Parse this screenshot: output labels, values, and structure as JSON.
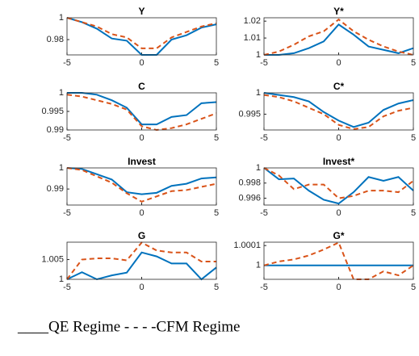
{
  "chart_data": [
    {
      "type": "line",
      "title": "Y",
      "x": [
        -5,
        -4,
        -3,
        -2,
        -1,
        0,
        1,
        2,
        3,
        4,
        5
      ],
      "xlim": [
        -5,
        5
      ],
      "xticks": [
        -5,
        0,
        5
      ],
      "ylim": [
        0.966,
        1.0
      ],
      "yticks": [
        0.98,
        1
      ],
      "series": [
        {
          "color": "#0072bd",
          "line_style": "solid",
          "values": [
            1.0,
            0.996,
            0.99,
            0.981,
            0.979,
            0.966,
            0.966,
            0.98,
            0.984,
            0.991,
            0.994
          ]
        },
        {
          "color": "#d95319",
          "line_style": "dashed",
          "values": [
            1.0,
            0.996,
            0.992,
            0.985,
            0.982,
            0.972,
            0.972,
            0.982,
            0.987,
            0.992,
            0.995
          ]
        }
      ]
    },
    {
      "type": "line",
      "title": "Y*",
      "x": [
        -5,
        -4,
        -3,
        -2,
        -1,
        0,
        1,
        2,
        3,
        4,
        5
      ],
      "xlim": [
        -5,
        5
      ],
      "xticks": [
        -5,
        0,
        5
      ],
      "ylim": [
        1.0,
        1.022
      ],
      "yticks": [
        1,
        1.01,
        1.02
      ],
      "series": [
        {
          "color": "#0072bd",
          "line_style": "solid",
          "values": [
            1.0,
            1.0,
            1.001,
            1.004,
            1.008,
            1.018,
            1.012,
            1.005,
            1.003,
            1.001,
            1.004
          ]
        },
        {
          "color": "#d95319",
          "line_style": "dashed",
          "values": [
            1.0,
            1.002,
            1.006,
            1.011,
            1.014,
            1.021,
            1.014,
            1.009,
            1.005,
            1.002,
            1.0
          ]
        }
      ]
    },
    {
      "type": "line",
      "title": "C",
      "x": [
        -5,
        -4,
        -3,
        -2,
        -1,
        0,
        1,
        2,
        3,
        4,
        5
      ],
      "xlim": [
        -5,
        5
      ],
      "xticks": [
        -5,
        0,
        5
      ],
      "ylim": [
        0.99,
        1.0
      ],
      "yticks": [
        0.99,
        0.995,
        1
      ],
      "series": [
        {
          "color": "#0072bd",
          "line_style": "solid",
          "values": [
            1.0,
            1.0,
            0.9995,
            0.998,
            0.996,
            0.9915,
            0.9915,
            0.9935,
            0.994,
            0.9972,
            0.9975
          ]
        },
        {
          "color": "#d95319",
          "line_style": "dashed",
          "values": [
            0.9995,
            0.999,
            0.998,
            0.997,
            0.9955,
            0.991,
            0.99,
            0.9905,
            0.9915,
            0.993,
            0.9945
          ]
        }
      ]
    },
    {
      "type": "line",
      "title": "C*",
      "x": [
        -5,
        -4,
        -3,
        -2,
        -1,
        0,
        1,
        2,
        3,
        4,
        5
      ],
      "xlim": [
        -5,
        5
      ],
      "xticks": [
        -5,
        0,
        5
      ],
      "ylim": [
        0.9913,
        1.0
      ],
      "yticks": [
        0.995,
        1
      ],
      "series": [
        {
          "color": "#0072bd",
          "line_style": "solid",
          "values": [
            1.0,
            0.9995,
            0.999,
            0.998,
            0.9955,
            0.9935,
            0.992,
            0.993,
            0.996,
            0.9975,
            0.9983
          ]
        },
        {
          "color": "#d95319",
          "line_style": "dashed",
          "values": [
            0.9995,
            0.999,
            0.998,
            0.9965,
            0.995,
            0.9925,
            0.9915,
            0.992,
            0.9945,
            0.9958,
            0.9965
          ]
        }
      ]
    },
    {
      "type": "line",
      "title": "Invest",
      "x": [
        -5,
        -4,
        -3,
        -2,
        -1,
        0,
        1,
        2,
        3,
        4,
        5
      ],
      "xlim": [
        -5,
        5
      ],
      "xticks": [
        -5,
        0,
        5
      ],
      "ylim": [
        0.9824,
        1.0
      ],
      "yticks": [
        0.99,
        1
      ],
      "series": [
        {
          "color": "#0072bd",
          "line_style": "solid",
          "values": [
            1.0,
            0.9995,
            0.997,
            0.9945,
            0.9885,
            0.9875,
            0.9882,
            0.9915,
            0.9925,
            0.995,
            0.9955
          ]
        },
        {
          "color": "#d95319",
          "line_style": "dashed",
          "values": [
            1.0,
            0.999,
            0.996,
            0.993,
            0.988,
            0.984,
            0.9865,
            0.989,
            0.9895,
            0.991,
            0.9925
          ]
        }
      ]
    },
    {
      "type": "line",
      "title": "Invest*",
      "x": [
        -5,
        -4,
        -3,
        -2,
        -1,
        0,
        1,
        2,
        3,
        4,
        5
      ],
      "xlim": [
        -5,
        5
      ],
      "xticks": [
        -5,
        0,
        5
      ],
      "ylim": [
        0.9951,
        1.0
      ],
      "yticks": [
        0.996,
        0.998,
        1
      ],
      "series": [
        {
          "color": "#0072bd",
          "line_style": "solid",
          "values": [
            1.0,
            0.9985,
            0.9986,
            0.997,
            0.9958,
            0.9953,
            0.9968,
            0.9988,
            0.9983,
            0.9988,
            0.997
          ]
        },
        {
          "color": "#d95319",
          "line_style": "dashed",
          "values": [
            1.0,
            0.999,
            0.9972,
            0.9978,
            0.9978,
            0.996,
            0.9963,
            0.997,
            0.997,
            0.9968,
            0.9983
          ]
        }
      ]
    },
    {
      "type": "line",
      "title": "G",
      "x": [
        -5,
        -4,
        -3,
        -2,
        -1,
        0,
        1,
        2,
        3,
        4,
        5
      ],
      "xlim": [
        -5,
        5
      ],
      "xticks": [
        -5,
        0,
        5
      ],
      "ylim": [
        1.0,
        1.0094
      ],
      "yticks": [
        1,
        1.005
      ],
      "series": [
        {
          "color": "#0072bd",
          "line_style": "solid",
          "values": [
            1.0,
            1.0018,
            1.0,
            1.001,
            1.0017,
            1.0068,
            1.0058,
            1.004,
            1.004,
            1.0,
            1.003
          ]
        },
        {
          "color": "#d95319",
          "line_style": "dashed",
          "values": [
            1.0,
            1.005,
            1.0053,
            1.0053,
            1.0048,
            1.0093,
            1.0073,
            1.0068,
            1.0068,
            1.0045,
            1.0045
          ]
        }
      ]
    },
    {
      "type": "line",
      "title": "G*",
      "x": [
        -5,
        -4,
        -3,
        -2,
        -1,
        0,
        1,
        2,
        3,
        4,
        5
      ],
      "xlim": [
        -5,
        5
      ],
      "xticks": [
        -5,
        0,
        5
      ],
      "ylim": [
        0.99993,
        1.000117
      ],
      "yticks": [
        1,
        1.0001
      ],
      "series": [
        {
          "color": "#0072bd",
          "line_style": "solid",
          "values": [
            1,
            1,
            1,
            1,
            1,
            1,
            1,
            1,
            1,
            1,
            1
          ]
        },
        {
          "color": "#d95319",
          "line_style": "dashed",
          "values": [
            1.0,
            1.00002,
            1.00003,
            1.00005,
            1.00008,
            1.000115,
            0.99993,
            0.99993,
            0.99997,
            0.99995,
            1.0
          ]
        }
      ]
    }
  ],
  "caption": "____QE Regime - - - -CFM Regime"
}
